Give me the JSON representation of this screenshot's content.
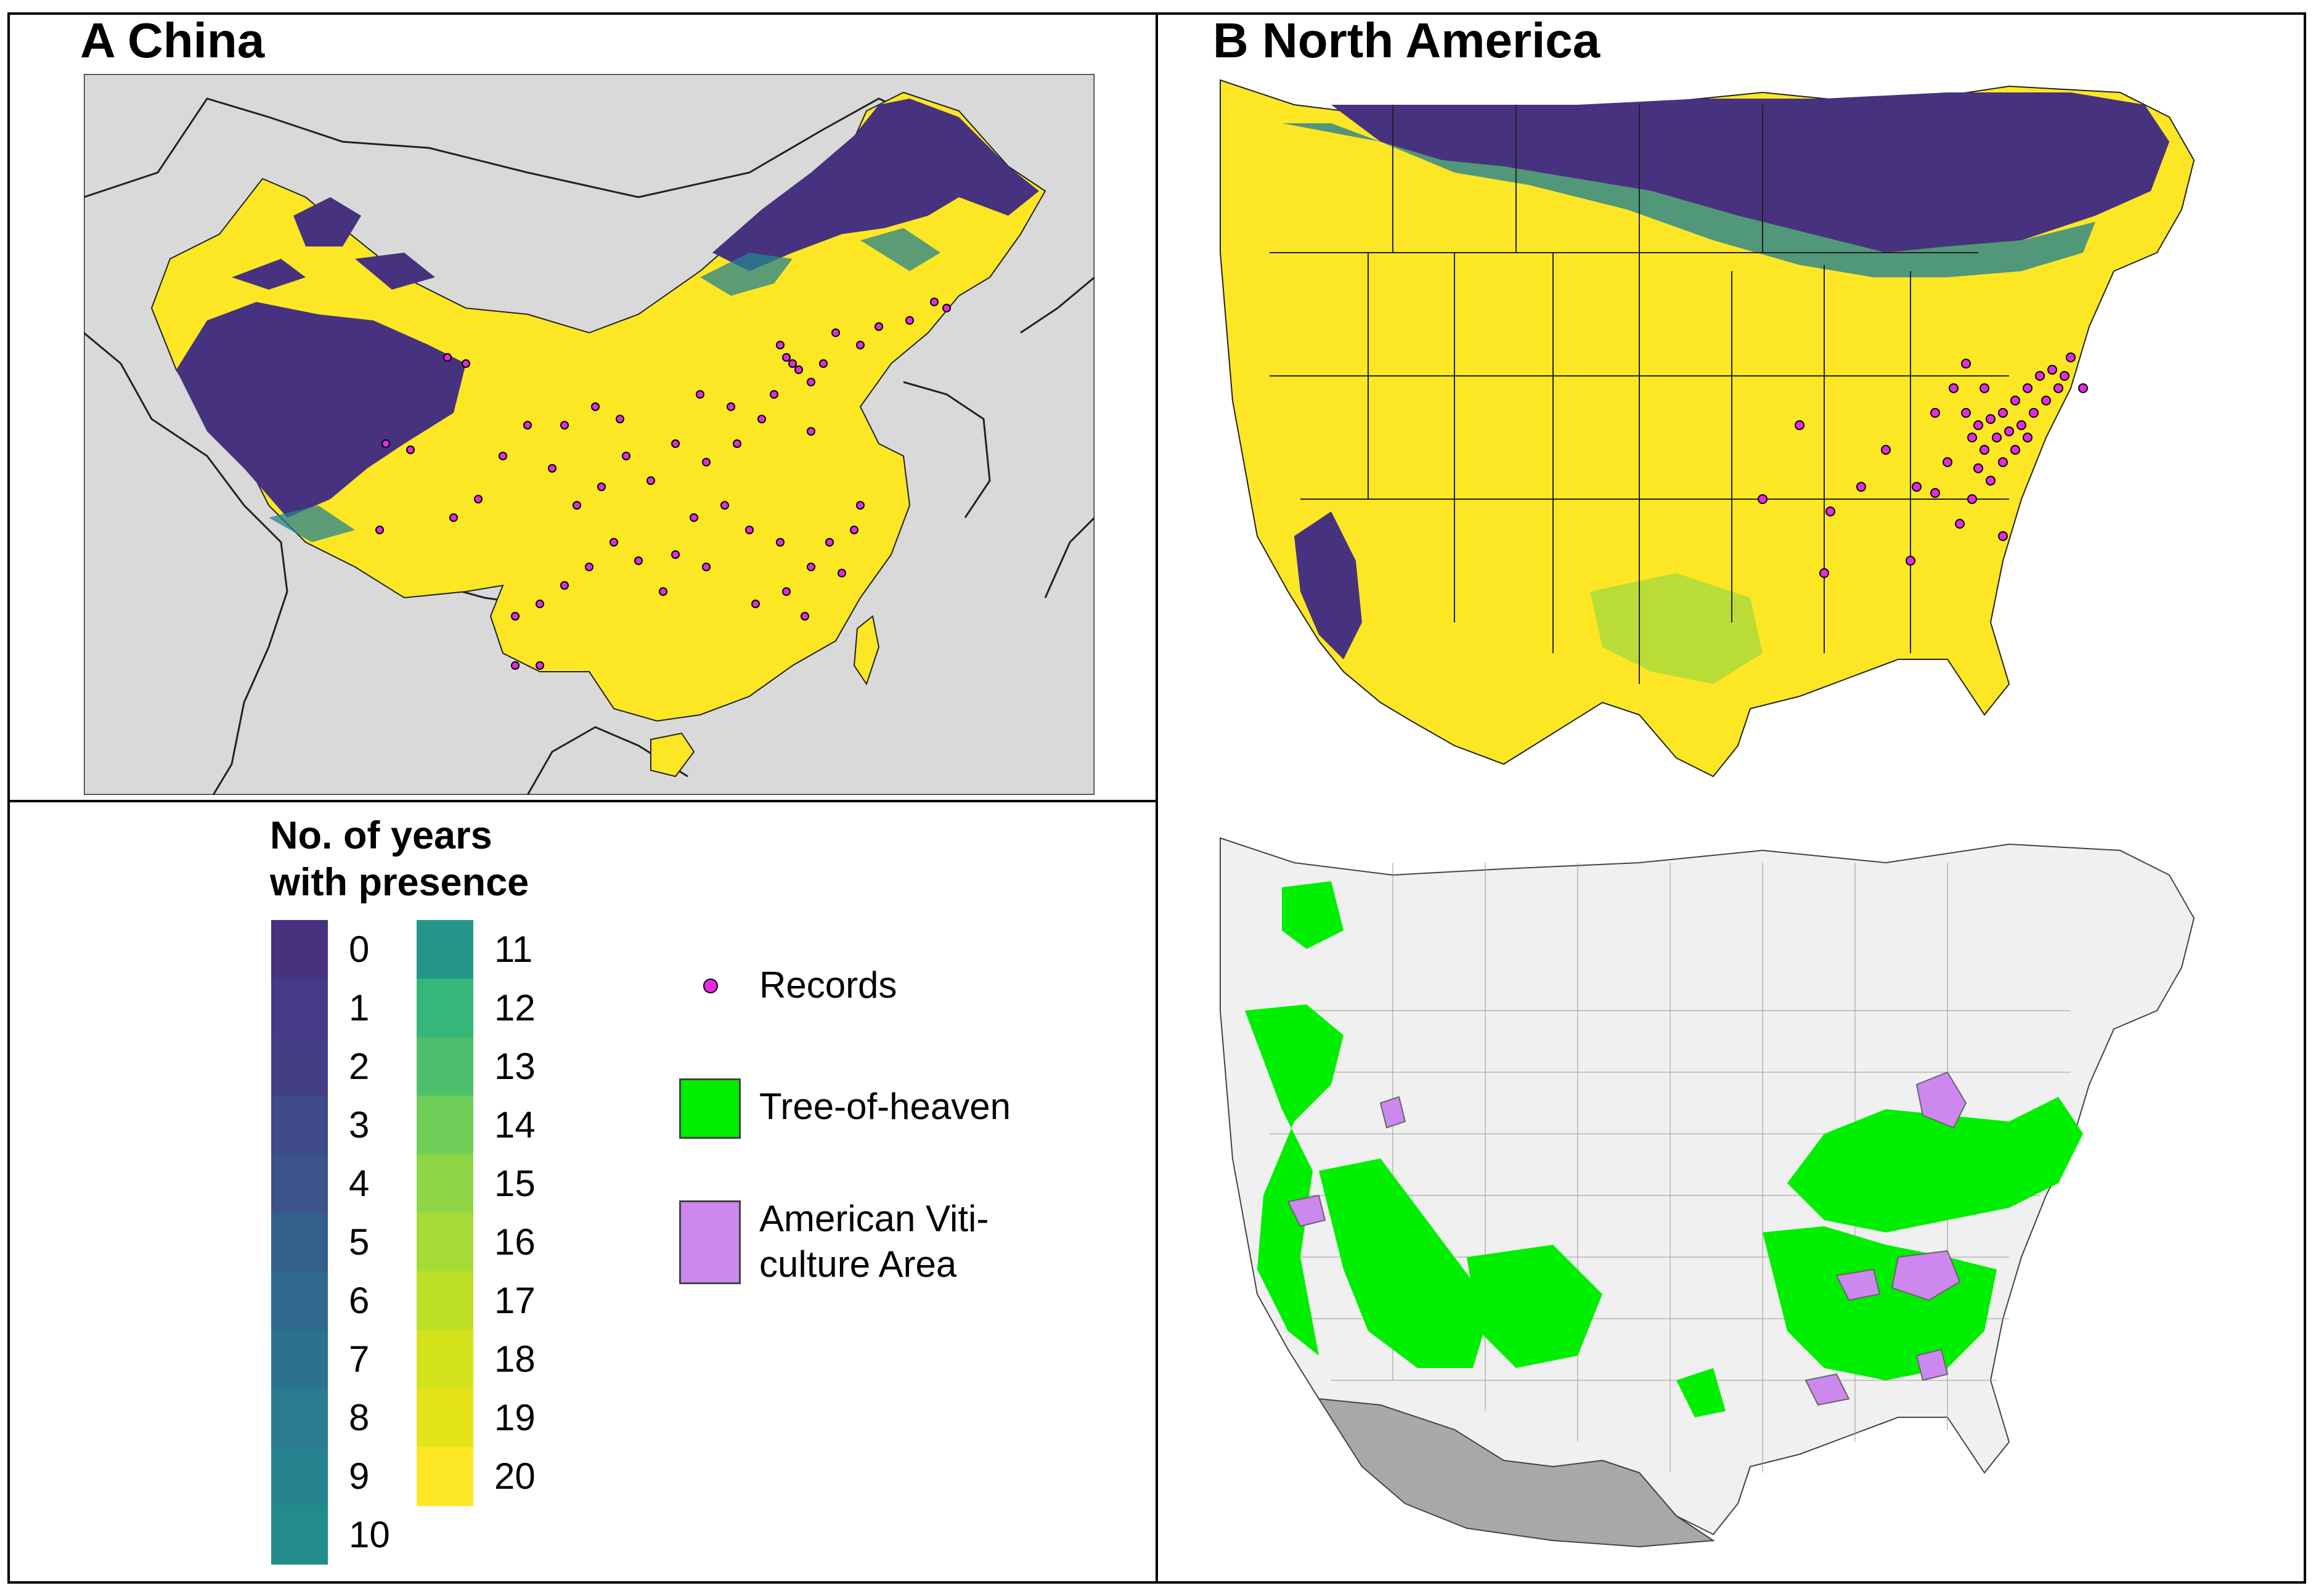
{
  "panels": {
    "china_title": "A China",
    "north_america_title": "B North America"
  },
  "legend": {
    "title_line1": "No. of years",
    "title_line2": "with presence",
    "scale": [
      {
        "label": "0",
        "color": "#46327e"
      },
      {
        "label": "1",
        "color": "#463985"
      },
      {
        "label": "2",
        "color": "#433e85"
      },
      {
        "label": "3",
        "color": "#3e4a89"
      },
      {
        "label": "4",
        "color": "#3b528b"
      },
      {
        "label": "5",
        "color": "#355f8d"
      },
      {
        "label": "6",
        "color": "#30698e"
      },
      {
        "label": "7",
        "color": "#2c728e"
      },
      {
        "label": "8",
        "color": "#297b8e"
      },
      {
        "label": "9",
        "color": "#26838f"
      },
      {
        "label": "10",
        "color": "#228c8d"
      },
      {
        "label": "11",
        "color": "#25958a"
      },
      {
        "label": "12",
        "color": "#35b779"
      },
      {
        "label": "13",
        "color": "#4fbf6e"
      },
      {
        "label": "14",
        "color": "#6ece58"
      },
      {
        "label": "15",
        "color": "#8ed645"
      },
      {
        "label": "16",
        "color": "#a5db36"
      },
      {
        "label": "17",
        "color": "#bddf26"
      },
      {
        "label": "18",
        "color": "#d2e21b"
      },
      {
        "label": "19",
        "color": "#e5e419"
      },
      {
        "label": "20",
        "color": "#fde725"
      }
    ],
    "records_label": "Records",
    "records_color": "#e22be2",
    "tree_label": "Tree-of-heaven",
    "tree_color": "#00ee00",
    "ava_label_line1": "American Viti-",
    "ava_label_line2": "culture Area",
    "ava_color": "#cc88ee"
  },
  "map_colors": {
    "background_land": "#d9d9d9",
    "presence_high": "#fde725",
    "presence_low": "#46327e",
    "presence_mid": "#26838f",
    "county_fill": "#f0f0f0",
    "mexico_fill": "#a8a8a8"
  }
}
